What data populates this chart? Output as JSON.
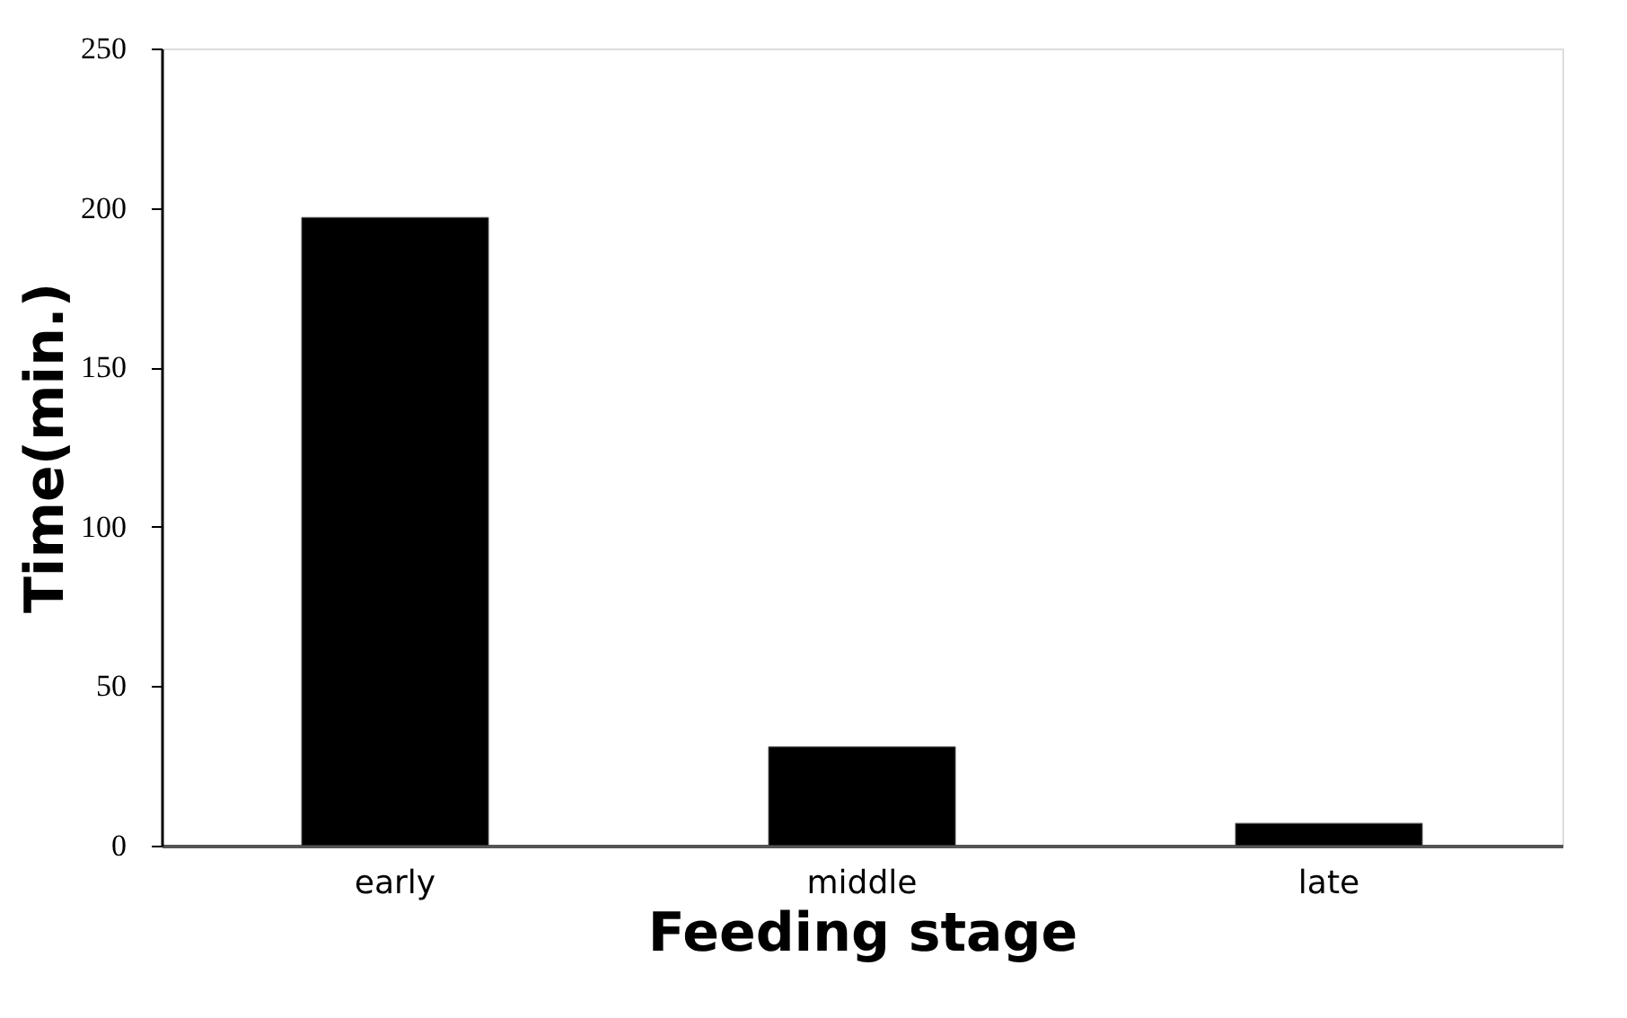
{
  "chart_data": {
    "type": "bar",
    "xlabel": "Feeding stage",
    "ylabel": "Time(min.)",
    "categories": [
      "early",
      "middle",
      "late"
    ],
    "values": [
      197,
      31,
      7
    ],
    "color": "#000000",
    "ylim": [
      0,
      250
    ],
    "yticks": [
      0,
      50,
      100,
      150,
      200,
      250
    ],
    "grid": false
  }
}
